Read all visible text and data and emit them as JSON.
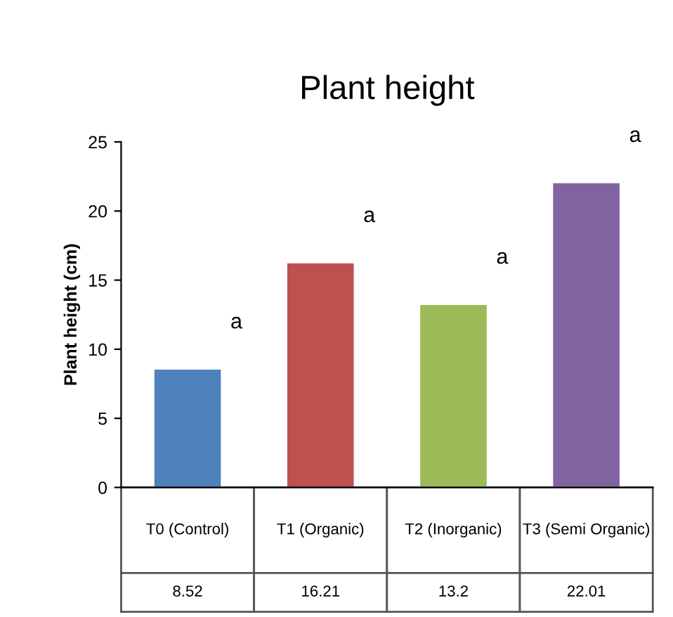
{
  "chart_data": {
    "type": "bar",
    "title": "Plant height",
    "ylabel": "Plant height (cm)",
    "categories": [
      "T0 (Control)",
      "T1 (Organic)",
      "T2 (Inorganic)",
      "T3 (Semi Organic)"
    ],
    "values": [
      8.52,
      16.21,
      13.2,
      22.01
    ],
    "colors": [
      "#4f81bd",
      "#c0504d",
      "#9bbb59",
      "#8064a2"
    ],
    "ylim": [
      0,
      25
    ],
    "yticks": [
      0,
      5,
      10,
      15,
      20,
      25
    ],
    "grid": false,
    "data_labels": true,
    "annotations": [
      "a",
      "a",
      "a",
      "a"
    ]
  }
}
